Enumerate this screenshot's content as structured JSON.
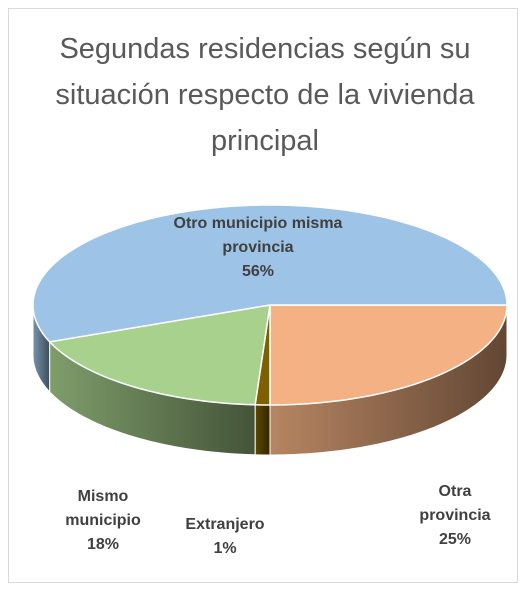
{
  "chart_data": {
    "type": "pie3d",
    "title": "Segundas residencias según su situación respecto de la vivienda principal",
    "categories": [
      "Otra provincia",
      "Extranjero",
      "Mismo municipio",
      "Otro municipio misma provincia"
    ],
    "values": [
      25,
      1,
      18,
      56
    ],
    "value_labels": [
      "25%",
      "1%",
      "18%",
      "56%"
    ],
    "colors": [
      "#f4b183",
      "#7f6000",
      "#a9d18e",
      "#9dc3e6"
    ]
  }
}
